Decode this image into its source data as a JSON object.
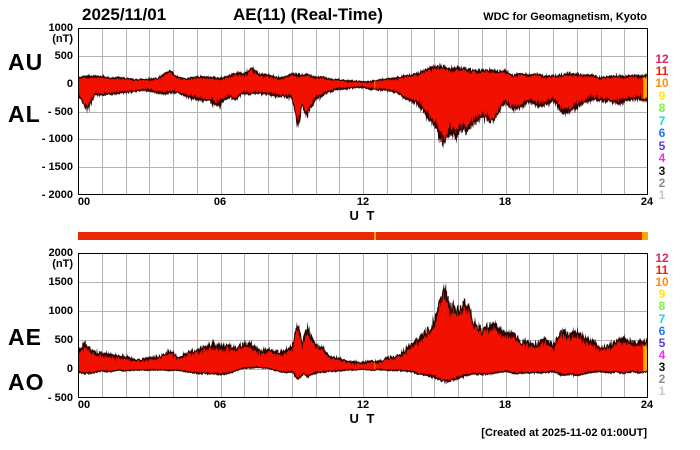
{
  "header": {
    "date": "2025/11/01",
    "title": "AE(11) (Real-Time)",
    "credit": "WDC for Geomagnetism, Kyoto"
  },
  "footer": {
    "created": "[Created at 2025-11-02 01:00UT]"
  },
  "panels": {
    "top": {
      "left_labels": [
        "AU",
        "AL"
      ],
      "unit": "(nT)",
      "y_ticks": [
        "1000",
        "500",
        "0",
        "- 500",
        "- 1000",
        "- 1500",
        "- 2000"
      ],
      "x_ticks": [
        "00",
        "06",
        "12",
        "18",
        "24"
      ],
      "x_axis_label": "U T"
    },
    "bottom": {
      "left_labels": [
        "AE",
        "AO"
      ],
      "unit": "(nT)",
      "y_ticks": [
        "2000",
        "1500",
        "1000",
        "500",
        "0",
        "- 500"
      ],
      "x_ticks": [
        "00",
        "06",
        "12",
        "18",
        "24"
      ],
      "x_axis_label": "U T"
    }
  },
  "stations": {
    "numbers": [
      12,
      11,
      10,
      9,
      8,
      7,
      6,
      5,
      4,
      3,
      2,
      1
    ],
    "colors": [
      "#e02462",
      "#fb1b0e",
      "#ff9100",
      "#ffe912",
      "#7df23d",
      "#12dcdc",
      "#1f78f5",
      "#5a3ddb",
      "#f02df0",
      "#111111",
      "#8c8c8c",
      "#c6c6c6"
    ]
  },
  "colors": {
    "fill": "#f21100",
    "outline": "#2a0300",
    "gap_orange": "#ffa800",
    "grid": "#b4b4b4",
    "border": "#000000",
    "availability_bar": "#ea2a02"
  },
  "availability": {
    "gap_hour": 12.5,
    "start_hour": 0,
    "end_hour": 24
  },
  "chart_data": [
    {
      "type": "area",
      "title": "AU and AL auroral electrojet indices",
      "xlabel": "U T",
      "ylabel": "(nT)",
      "xlim": [
        0,
        24
      ],
      "ylim": [
        -2000,
        1000
      ],
      "grid": "on",
      "series": [
        {
          "name": "AU",
          "points": [
            [
              0,
              90
            ],
            [
              0.3,
              130
            ],
            [
              0.7,
              110
            ],
            [
              1,
              120
            ],
            [
              1.5,
              110
            ],
            [
              2,
              100
            ],
            [
              2.4,
              60
            ],
            [
              2.8,
              70
            ],
            [
              3.2,
              90
            ],
            [
              3.6,
              140
            ],
            [
              3.9,
              200
            ],
            [
              4.1,
              120
            ],
            [
              4.5,
              100
            ],
            [
              5,
              120
            ],
            [
              5.5,
              100
            ],
            [
              6,
              110
            ],
            [
              6.5,
              150
            ],
            [
              7,
              200
            ],
            [
              7.3,
              250
            ],
            [
              7.6,
              200
            ],
            [
              8,
              160
            ],
            [
              8.5,
              120
            ],
            [
              9,
              150
            ],
            [
              9.3,
              140
            ],
            [
              9.7,
              190
            ],
            [
              10,
              130
            ],
            [
              10.5,
              80
            ],
            [
              11,
              60
            ],
            [
              11.5,
              50
            ],
            [
              12,
              45
            ],
            [
              12.5,
              55
            ],
            [
              13,
              80
            ],
            [
              13.5,
              110
            ],
            [
              14,
              160
            ],
            [
              14.5,
              210
            ],
            [
              15,
              260
            ],
            [
              15.4,
              300
            ],
            [
              15.7,
              280
            ],
            [
              16,
              300
            ],
            [
              16.5,
              260
            ],
            [
              17,
              220
            ],
            [
              17.5,
              210
            ],
            [
              18,
              190
            ],
            [
              18.5,
              160
            ],
            [
              19,
              150
            ],
            [
              19.5,
              140
            ],
            [
              20,
              160
            ],
            [
              20.5,
              190
            ],
            [
              21,
              160
            ],
            [
              21.5,
              130
            ],
            [
              22,
              120
            ],
            [
              22.5,
              110
            ],
            [
              23,
              130
            ],
            [
              23.5,
              140
            ],
            [
              24,
              150
            ]
          ]
        },
        {
          "name": "AL",
          "points": [
            [
              0,
              -150
            ],
            [
              0.2,
              -300
            ],
            [
              0.45,
              -420
            ],
            [
              0.7,
              -250
            ],
            [
              1,
              -200
            ],
            [
              1.5,
              -180
            ],
            [
              2,
              -150
            ],
            [
              2.5,
              -120
            ],
            [
              3,
              -130
            ],
            [
              3.5,
              -150
            ],
            [
              4,
              -160
            ],
            [
              4.5,
              -200
            ],
            [
              5,
              -250
            ],
            [
              5.5,
              -300
            ],
            [
              5.8,
              -360
            ],
            [
              6,
              -330
            ],
            [
              6.3,
              -280
            ],
            [
              6.7,
              -240
            ],
            [
              7,
              -190
            ],
            [
              7.5,
              -150
            ],
            [
              8,
              -160
            ],
            [
              8.5,
              -210
            ],
            [
              9,
              -260
            ],
            [
              9.25,
              -700
            ],
            [
              9.45,
              -350
            ],
            [
              9.65,
              -650
            ],
            [
              9.85,
              -400
            ],
            [
              10,
              -280
            ],
            [
              10.5,
              -160
            ],
            [
              11,
              -110
            ],
            [
              11.5,
              -90
            ],
            [
              12,
              -75
            ],
            [
              12.5,
              -80
            ],
            [
              13,
              -110
            ],
            [
              13.5,
              -160
            ],
            [
              14,
              -260
            ],
            [
              14.4,
              -420
            ],
            [
              14.7,
              -550
            ],
            [
              15,
              -700
            ],
            [
              15.2,
              -900
            ],
            [
              15.45,
              -1100
            ],
            [
              15.7,
              -950
            ],
            [
              15.9,
              -1000
            ],
            [
              16.1,
              -820
            ],
            [
              16.35,
              -870
            ],
            [
              16.6,
              -680
            ],
            [
              17,
              -560
            ],
            [
              17.4,
              -600
            ],
            [
              17.7,
              -460
            ],
            [
              18,
              -360
            ],
            [
              18.3,
              -420
            ],
            [
              18.6,
              -380
            ],
            [
              19,
              -310
            ],
            [
              19.4,
              -360
            ],
            [
              19.7,
              -320
            ],
            [
              20,
              -310
            ],
            [
              20.4,
              -560
            ],
            [
              20.7,
              -480
            ],
            [
              21,
              -450
            ],
            [
              21.3,
              -350
            ],
            [
              21.7,
              -290
            ],
            [
              22,
              -260
            ],
            [
              22.4,
              -310
            ],
            [
              22.8,
              -360
            ],
            [
              23.2,
              -330
            ],
            [
              23.6,
              -300
            ],
            [
              24,
              -310
            ]
          ]
        }
      ]
    },
    {
      "type": "area",
      "title": "AE and AO auroral electrojet indices",
      "xlabel": "U T",
      "ylabel": "(nT)",
      "xlim": [
        0,
        24
      ],
      "ylim": [
        -500,
        2000
      ],
      "grid": "on",
      "series": [
        {
          "name": "AE",
          "points": [
            [
              0,
              280
            ],
            [
              0.3,
              450
            ],
            [
              0.6,
              330
            ],
            [
              1,
              300
            ],
            [
              1.5,
              270
            ],
            [
              2,
              230
            ],
            [
              2.5,
              150
            ],
            [
              3,
              160
            ],
            [
              3.5,
              200
            ],
            [
              3.9,
              300
            ],
            [
              4.2,
              220
            ],
            [
              4.5,
              260
            ],
            [
              5,
              320
            ],
            [
              5.5,
              370
            ],
            [
              5.9,
              430
            ],
            [
              6.2,
              380
            ],
            [
              6.6,
              360
            ],
            [
              7,
              400
            ],
            [
              7.3,
              420
            ],
            [
              7.7,
              330
            ],
            [
              8,
              300
            ],
            [
              8.5,
              310
            ],
            [
              9,
              380
            ],
            [
              9.25,
              850
            ],
            [
              9.45,
              500
            ],
            [
              9.65,
              780
            ],
            [
              9.85,
              550
            ],
            [
              10,
              420
            ],
            [
              10.5,
              240
            ],
            [
              11,
              160
            ],
            [
              11.5,
              130
            ],
            [
              12,
              115
            ],
            [
              12.5,
              130
            ],
            [
              13,
              180
            ],
            [
              13.5,
              260
            ],
            [
              14,
              400
            ],
            [
              14.4,
              580
            ],
            [
              14.7,
              700
            ],
            [
              15,
              860
            ],
            [
              15.2,
              1050
            ],
            [
              15.45,
              1270
            ],
            [
              15.7,
              1150
            ],
            [
              15.9,
              1200
            ],
            [
              16.1,
              1030
            ],
            [
              16.35,
              1080
            ],
            [
              16.6,
              880
            ],
            [
              17,
              740
            ],
            [
              17.4,
              780
            ],
            [
              17.7,
              620
            ],
            [
              18,
              520
            ],
            [
              18.3,
              560
            ],
            [
              18.6,
              520
            ],
            [
              19,
              450
            ],
            [
              19.4,
              490
            ],
            [
              19.7,
              450
            ],
            [
              20,
              450
            ],
            [
              20.4,
              700
            ],
            [
              20.7,
              620
            ],
            [
              21,
              580
            ],
            [
              21.3,
              470
            ],
            [
              21.7,
              400
            ],
            [
              22,
              370
            ],
            [
              22.4,
              400
            ],
            [
              22.8,
              450
            ],
            [
              23.2,
              440
            ],
            [
              23.6,
              420
            ],
            [
              24,
              440
            ]
          ]
        },
        {
          "name": "AO",
          "points": [
            [
              0,
              -40
            ],
            [
              0.3,
              -90
            ],
            [
              0.7,
              -60
            ],
            [
              1,
              -40
            ],
            [
              1.5,
              -30
            ],
            [
              2,
              -20
            ],
            [
              2.5,
              -10
            ],
            [
              3,
              -20
            ],
            [
              3.5,
              -10
            ],
            [
              4,
              -20
            ],
            [
              4.5,
              -40
            ],
            [
              5,
              -60
            ],
            [
              5.5,
              -80
            ],
            [
              6,
              -90
            ],
            [
              6.5,
              -50
            ],
            [
              7,
              10
            ],
            [
              7.5,
              30
            ],
            [
              8,
              0
            ],
            [
              8.5,
              -40
            ],
            [
              9,
              -60
            ],
            [
              9.25,
              -160
            ],
            [
              9.5,
              -80
            ],
            [
              9.7,
              -130
            ],
            [
              10,
              -70
            ],
            [
              10.5,
              -40
            ],
            [
              11,
              -25
            ],
            [
              11.5,
              -15
            ],
            [
              12,
              -12
            ],
            [
              12.5,
              -15
            ],
            [
              13,
              -20
            ],
            [
              13.5,
              -30
            ],
            [
              14,
              -50
            ],
            [
              14.5,
              -90
            ],
            [
              15,
              -150
            ],
            [
              15.45,
              -210
            ],
            [
              15.8,
              -160
            ],
            [
              16,
              -130
            ],
            [
              16.5,
              -110
            ],
            [
              17,
              -90
            ],
            [
              17.5,
              -70
            ],
            [
              18,
              -50
            ],
            [
              18.5,
              -80
            ],
            [
              19,
              -60
            ],
            [
              19.5,
              -70
            ],
            [
              20,
              -50
            ],
            [
              20.5,
              -100
            ],
            [
              21,
              -90
            ],
            [
              21.5,
              -60
            ],
            [
              22,
              -40
            ],
            [
              22.5,
              -60
            ],
            [
              23,
              -60
            ],
            [
              23.5,
              -50
            ],
            [
              24,
              -40
            ]
          ]
        }
      ]
    }
  ]
}
